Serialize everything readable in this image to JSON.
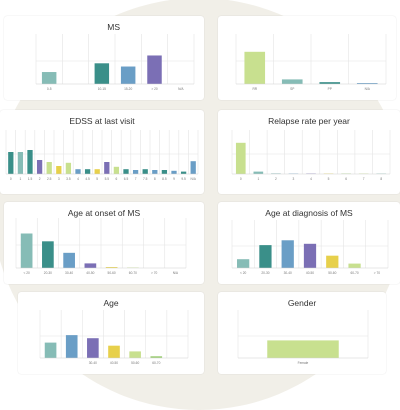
{
  "colors": {
    "lime": "#c8e08f",
    "teal_light": "#86bcb6",
    "teal": "#3a8f89",
    "blue": "#6a9ec6",
    "purple": "#7b6fb5",
    "yellow": "#e7d04b",
    "green": "#9fcf79"
  },
  "cards": [
    {
      "id": "disease-course",
      "title": "MS",
      "chart_data": {
        "type": "bar",
        "categories": [
          "0-5",
          "",
          "10-15",
          "15-20",
          "> 20",
          "N/A"
        ],
        "values": [
          26,
          0,
          45,
          38,
          62,
          0
        ],
        "colors": [
          "#86bcb6",
          "#3a8f89",
          "#3a8f89",
          "#6a9ec6",
          "#7b6fb5",
          "#7b6fb5"
        ],
        "ylim": [
          0,
          100
        ]
      }
    },
    {
      "id": "category-distribution",
      "title": "",
      "chart_data": {
        "type": "bar",
        "categories": [
          "RR",
          "SP",
          "PP",
          "N/A"
        ],
        "values": [
          70,
          10,
          4,
          2
        ],
        "colors": [
          "#c8e08f",
          "#86bcb6",
          "#3a8f89",
          "#6a9ec6"
        ],
        "ylim": [
          0,
          100
        ]
      }
    },
    {
      "id": "edss",
      "title": "EDSS at last visit",
      "chart_data": {
        "type": "bar",
        "categories": [
          "0",
          "1",
          "1.5",
          "2",
          "2.5",
          "3",
          "3.5",
          "4",
          "4.5",
          "5",
          "5.5",
          "6",
          "6.5",
          "7",
          "7.5",
          "8",
          "8.5",
          "9",
          "9.5",
          "N/A"
        ],
        "values": [
          55,
          55,
          60,
          35,
          30,
          20,
          28,
          12,
          12,
          12,
          30,
          18,
          12,
          10,
          12,
          10,
          10,
          8,
          6,
          32
        ],
        "colors": [
          "#3a8f89",
          "#86bcb6",
          "#3a8f89",
          "#7b6fb5",
          "#c8e08f",
          "#e7d04b",
          "#c8e08f",
          "#6a9ec6",
          "#3a8f89",
          "#e7d04b",
          "#7b6fb5",
          "#c8e08f",
          "#3a8f89",
          "#6a9ec6",
          "#3a8f89",
          "#6a9ec6",
          "#3a8f89",
          "#6a9ec6",
          "#3a8f89",
          "#6a9ec6"
        ],
        "ylim": [
          0,
          100
        ]
      }
    },
    {
      "id": "relapse-rate",
      "title": "Relapse rate per year",
      "chart_data": {
        "type": "bar",
        "categories": [
          "0",
          "1",
          "2",
          "3",
          "4",
          "5",
          "6",
          "7",
          "8"
        ],
        "values": [
          78,
          6,
          1,
          1,
          1,
          1,
          1,
          1,
          1
        ],
        "colors": [
          "#c8e08f",
          "#86bcb6",
          "#3a8f89",
          "#6a9ec6",
          "#7b6fb5",
          "#e7d04b",
          "#9fcf79",
          "#c8e08f",
          "#86bcb6"
        ],
        "ylim": [
          0,
          100
        ]
      }
    },
    {
      "id": "age-onset",
      "title": "Age at onset of MS",
      "chart_data": {
        "type": "bar",
        "categories": [
          "< 20",
          "20-30",
          "30-40",
          "40-50",
          "50-60",
          "60-70",
          "> 70",
          "N/A"
        ],
        "values": [
          75,
          58,
          33,
          10,
          2,
          1,
          0,
          0
        ],
        "colors": [
          "#86bcb6",
          "#3a8f89",
          "#6a9ec6",
          "#7b6fb5",
          "#e7d04b",
          "#c8e08f",
          "#9fcf79",
          "#86bcb6"
        ],
        "ylim": [
          0,
          100
        ]
      }
    },
    {
      "id": "age-diagnosis",
      "title": "Age at diagnosis of MS",
      "chart_data": {
        "type": "bar",
        "categories": [
          "< 20",
          "20-30",
          "30-40",
          "40-50",
          "50-60",
          "60-70",
          "> 70"
        ],
        "values": [
          20,
          52,
          63,
          55,
          28,
          10,
          0
        ],
        "colors": [
          "#86bcb6",
          "#3a8f89",
          "#6a9ec6",
          "#7b6fb5",
          "#e7d04b",
          "#c8e08f",
          "#9fcf79"
        ],
        "ylim": [
          0,
          100
        ]
      }
    },
    {
      "id": "age",
      "title": "Age",
      "chart_data": {
        "type": "bar",
        "categories": [
          "",
          "",
          "30-40",
          "40-50",
          "50-60",
          "60-70",
          ""
        ],
        "values": [
          35,
          52,
          45,
          28,
          15,
          4,
          0
        ],
        "colors": [
          "#86bcb6",
          "#6a9ec6",
          "#7b6fb5",
          "#e7d04b",
          "#c8e08f",
          "#9fcf79",
          "#86bcb6"
        ],
        "ylim": [
          0,
          100
        ]
      }
    },
    {
      "id": "gender",
      "title": "Gender",
      "chart_data": {
        "type": "bar",
        "categories": [
          "Female"
        ],
        "values": [
          40
        ],
        "colors": [
          "#c8e08f"
        ],
        "ylim": [
          0,
          100
        ]
      }
    }
  ]
}
